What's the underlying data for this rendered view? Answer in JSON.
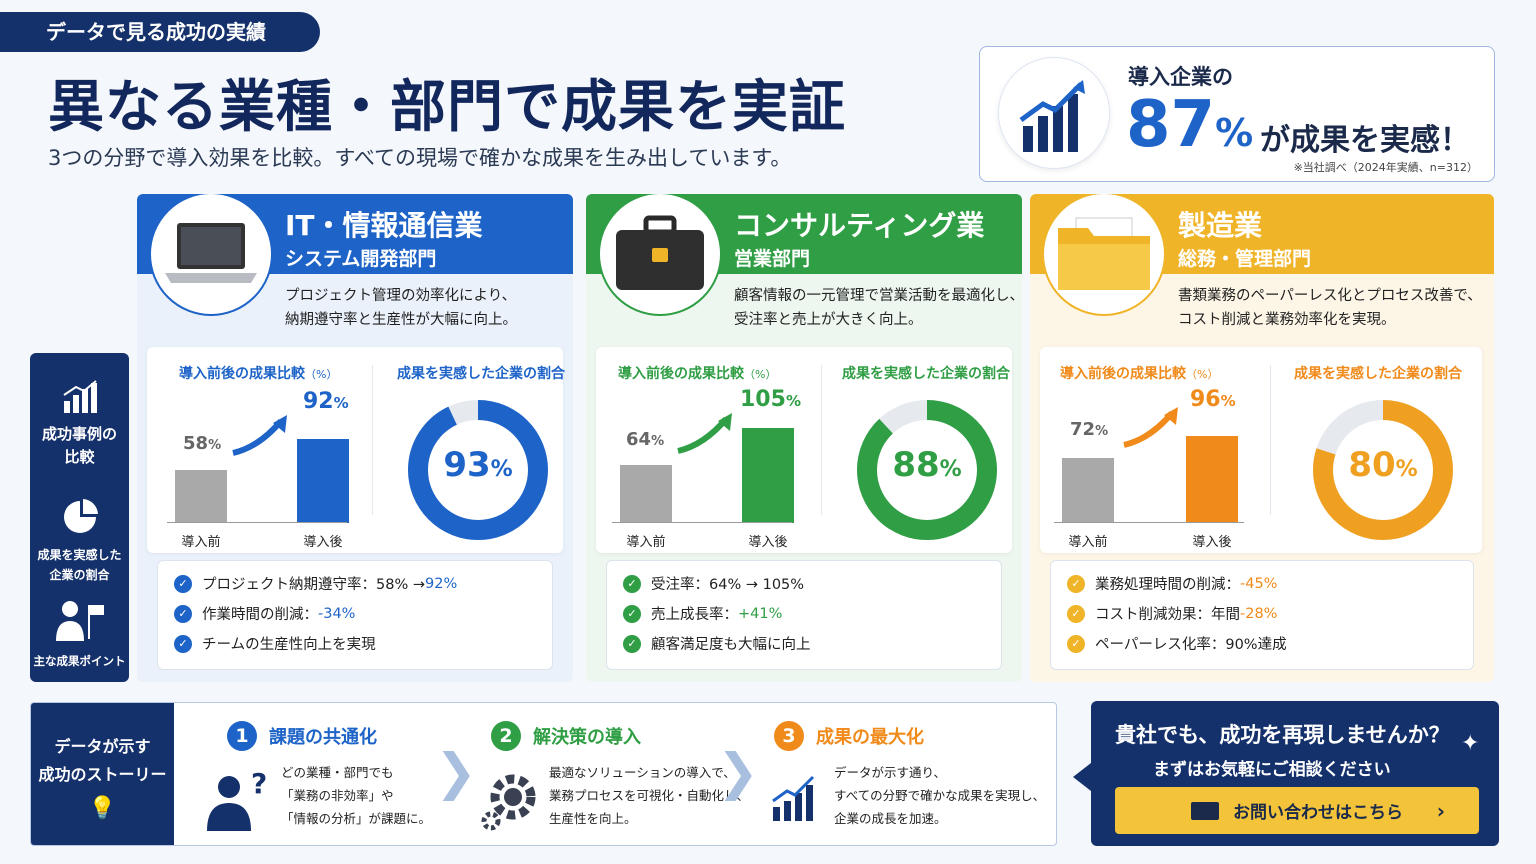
{
  "ribbon": "データで見る成功の実績",
  "title": "異なる業種・部門で成果を実証",
  "subtitle": "3つの分野で導入効果を比較。すべての現場で確かな成果を生み出しています。",
  "stat": {
    "line1": "導入企業の",
    "value": "87",
    "pct": "%",
    "tail": "が成果を実感！",
    "note": "※当社調べ（2024年実績、n=312）"
  },
  "side_nav": {
    "item1": "成功事例の比較",
    "item2": "成果を実感した企業の割合",
    "item3": "主な成果ポイント"
  },
  "cards": [
    {
      "title": "IT・情報通信業",
      "dept": "システム開発部門",
      "desc1": "プロジェクト管理の効率化により、",
      "desc2": "納期遵守率と生産性が大幅に向上。",
      "chart_heading": "導入前後の成果比較",
      "chart_unit": "（%）",
      "ratio_heading": "成果を実感した企業の割合",
      "before_label": "導入前",
      "after_label": "導入後",
      "before_value": "58",
      "after_value": "92",
      "ratio_value": "93",
      "pct": "%",
      "points": [
        "プロジェクト納期遵守率：58% → ",
        "作業時間の削減：",
        "チームの生産性向上を実現"
      ],
      "point_highlights": [
        "92%",
        "-34%",
        ""
      ],
      "color": "#1e64c8",
      "light": "#eaf1fb"
    },
    {
      "title": "コンサルティング業",
      "dept": "営業部門",
      "desc1": "顧客情報の一元管理で営業活動を最適化し、",
      "desc2": "受注率と売上が大きく向上。",
      "chart_heading": "導入前後の成果比較",
      "chart_unit": "（%）",
      "ratio_heading": "成果を実感した企業の割合",
      "before_label": "導入前",
      "after_label": "導入後",
      "before_value": "64",
      "after_value": "105",
      "ratio_value": "88",
      "pct": "%",
      "points": [
        "受注率：64% → 105%",
        "売上成長率：",
        "顧客満足度も大幅に向上"
      ],
      "point_highlights": [
        "",
        "+41%",
        ""
      ],
      "color": "#2f9e44",
      "light": "#edf7ef"
    },
    {
      "title": "製造業",
      "dept": "総務・管理部門",
      "desc1": "書類業務のペーパーレス化とプロセス改善で、",
      "desc2": "コスト削減と業務効率化を実現。",
      "chart_heading": "導入前後の成果比較",
      "chart_unit": "（%）",
      "ratio_heading": "成果を実感した企業の割合",
      "before_label": "導入前",
      "after_label": "導入後",
      "before_value": "72",
      "after_value": "96",
      "ratio_value": "80",
      "pct": "%",
      "points": [
        "業務処理時間の削減：",
        "コスト削減効果：年間 ",
        "ペーパーレス化率：90%達成"
      ],
      "point_highlights": [
        "-45%",
        "-28%",
        ""
      ],
      "color": "#f0a020",
      "light": "#fdf5e6"
    }
  ],
  "chart_data": [
    {
      "type": "bar",
      "categories": [
        "導入前",
        "導入後"
      ],
      "values": [
        58,
        92
      ],
      "ylabel": "%"
    },
    {
      "type": "pie",
      "categories": [
        "成果を実感"
      ],
      "values": [
        93
      ]
    },
    {
      "type": "bar",
      "categories": [
        "導入前",
        "導入後"
      ],
      "values": [
        64,
        105
      ],
      "ylabel": "%"
    },
    {
      "type": "pie",
      "categories": [
        "成果を実感"
      ],
      "values": [
        88
      ]
    },
    {
      "type": "bar",
      "categories": [
        "導入前",
        "導入後"
      ],
      "values": [
        72,
        96
      ],
      "ylabel": "%"
    },
    {
      "type": "pie",
      "categories": [
        "成果を実感"
      ],
      "values": [
        80
      ]
    }
  ],
  "story": {
    "left_line1": "データが示す",
    "left_line2": "成功のストーリー",
    "steps": [
      {
        "num": "1",
        "title": "課題の共通化",
        "d1": "どの業種・部門でも",
        "d2": "「業務の非効率」や",
        "d3": "「情報の分析」が課題に。",
        "color": "#1e64c8"
      },
      {
        "num": "2",
        "title": "解決策の導入",
        "d1": "最適なソリューションの導入で、",
        "d2": "業務プロセスを可視化・自動化し、",
        "d3": "生産性を向上。",
        "color": "#2f9e44"
      },
      {
        "num": "3",
        "title": "成果の最大化",
        "d1": "データが示す通り、",
        "d2": "すべての分野で確かな成果を実現し、",
        "d3": "企業の成長を加速。",
        "color": "#f08a1a"
      }
    ]
  },
  "cta": {
    "line1": "貴社でも、成功を再現しませんか？",
    "line2": "まずはお気軽にご相談ください",
    "button": "お問い合わせはこちら"
  }
}
